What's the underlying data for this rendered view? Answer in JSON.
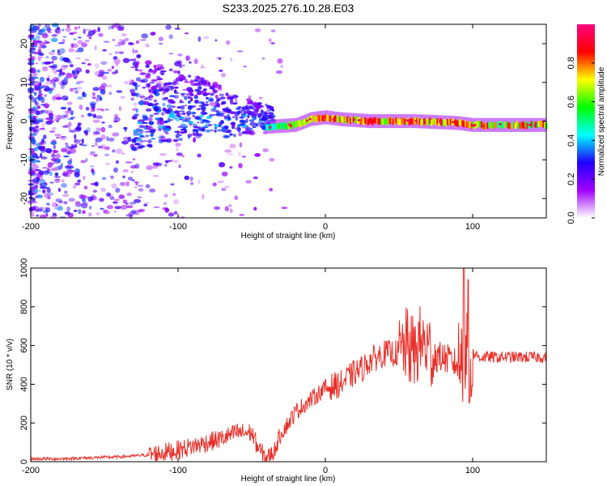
{
  "title": "S233.2025.276.10.28.E03",
  "chart_data": [
    {
      "type": "heatmap",
      "name": "spectrogram",
      "xlabel": "Height of straight line (km)",
      "ylabel": "Frequency (Hz)",
      "xlim": [
        -200,
        150
      ],
      "ylim": [
        -25,
        25
      ],
      "xticks": [
        -200,
        -100,
        0,
        100
      ],
      "xtick_labels": [
        "-200",
        "-100",
        "0",
        "100"
      ],
      "yticks": [
        -20,
        -10,
        0,
        10,
        20
      ],
      "ytick_labels": [
        "-20",
        "-10",
        "0",
        "10",
        "20"
      ],
      "colorbar": {
        "label": "Normalized spectral amplitude",
        "range": [
          0,
          1
        ],
        "ticks": [
          0.0,
          0.2,
          0.4,
          0.6,
          0.8
        ],
        "tick_labels": [
          "0.0",
          "0.2",
          "0.4",
          "0.6",
          "0.8"
        ],
        "colors": [
          "#ffffff",
          "#a000ff",
          "#2000ff",
          "#00ffff",
          "#00ff00",
          "#ffff00",
          "#ff0000",
          "#ff0080"
        ]
      },
      "ridge": [
        {
          "x": -40,
          "y": -1.5
        },
        {
          "x": -20,
          "y": -1
        },
        {
          "x": -10,
          "y": 0.5
        },
        {
          "x": 0,
          "y": 1
        },
        {
          "x": 10,
          "y": 0.5
        },
        {
          "x": 30,
          "y": 0
        },
        {
          "x": 60,
          "y": 0
        },
        {
          "x": 90,
          "y": -0.5
        },
        {
          "x": 100,
          "y": -1
        },
        {
          "x": 150,
          "y": -1
        }
      ]
    },
    {
      "type": "line",
      "name": "snr",
      "xlabel": "Height of straight line (km)",
      "ylabel": "SNR (10 * v/v)",
      "xlim": [
        -200,
        150
      ],
      "ylim": [
        0,
        1000
      ],
      "xticks": [
        -200,
        -100,
        0,
        100
      ],
      "xtick_labels": [
        "-200",
        "-100",
        "0",
        "100"
      ],
      "yticks": [
        0,
        200,
        400,
        600,
        800,
        1000
      ],
      "ytick_labels": [
        "0",
        "200",
        "400",
        "600",
        "800",
        "1000"
      ],
      "color": "#e8302a",
      "series": [
        {
          "name": "SNR",
          "x": [
            -200,
            -180,
            -160,
            -140,
            -120,
            -100,
            -90,
            -80,
            -70,
            -60,
            -50,
            -45,
            -40,
            -35,
            -30,
            -25,
            -20,
            -10,
            0,
            10,
            20,
            25,
            30,
            40,
            50,
            55,
            60,
            65,
            70,
            75,
            80,
            85,
            90,
            95,
            98,
            100,
            105,
            110,
            120,
            130,
            140,
            150
          ],
          "y": [
            15,
            15,
            20,
            25,
            35,
            60,
            80,
            100,
            120,
            150,
            150,
            60,
            20,
            50,
            150,
            200,
            260,
            320,
            380,
            400,
            460,
            480,
            520,
            560,
            560,
            600,
            560,
            620,
            580,
            540,
            540,
            520,
            500,
            580,
            400,
            560,
            540,
            540,
            540,
            540,
            540,
            540
          ]
        }
      ]
    }
  ]
}
